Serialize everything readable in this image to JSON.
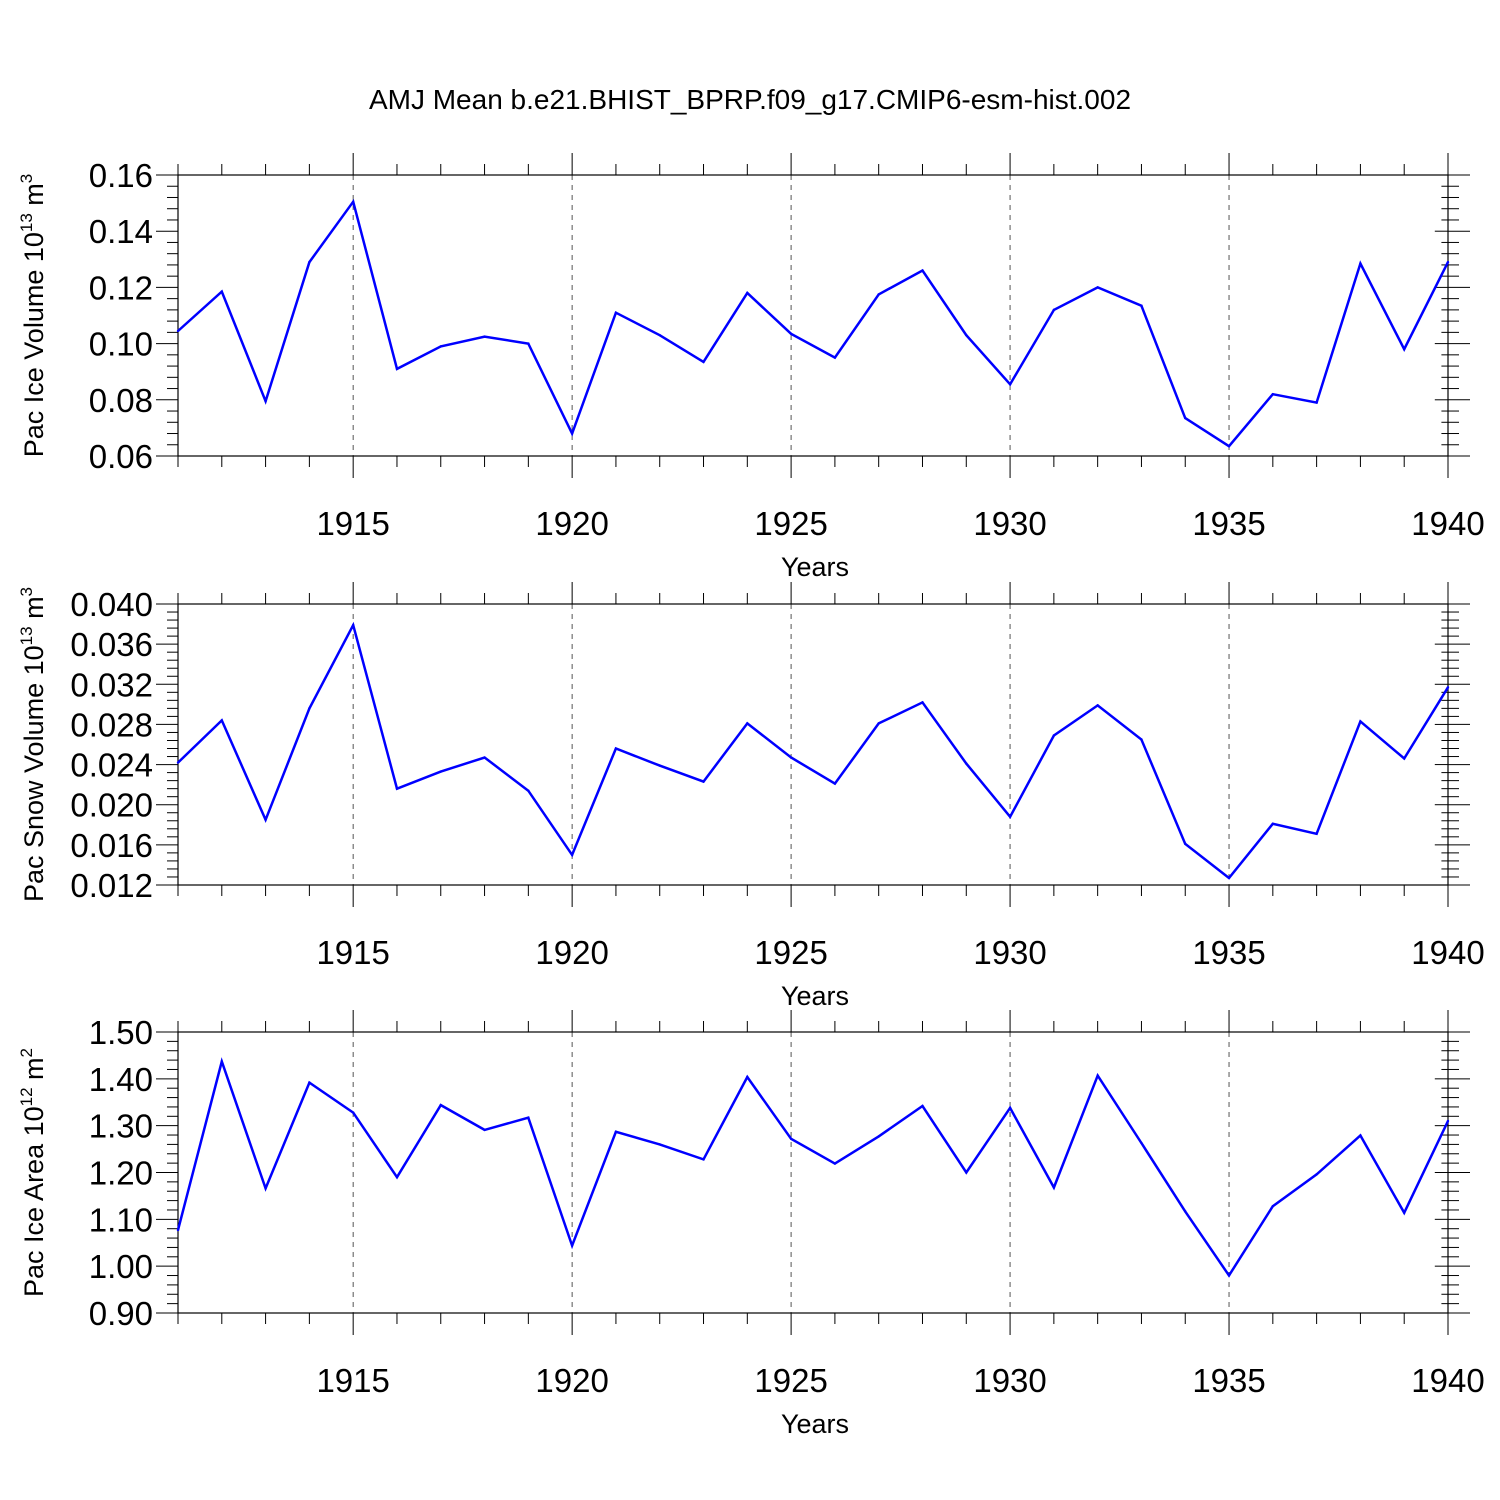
{
  "title": "AMJ Mean b.e21.BHIST_BPRP.f09_g17.CMIP6-esm-hist.002",
  "colors": {
    "line": "#0000ff",
    "axis": "#000000",
    "grid": "#555555"
  },
  "chart_data": [
    {
      "type": "line",
      "ylabel": "Pac Ice Volume 10",
      "ylabel_exp": "13",
      "ylabel_unit": " m",
      "ylabel_unit_exp": "3",
      "xlabel": "Years",
      "xlim": [
        1911,
        1940
      ],
      "ylim": [
        0.06,
        0.16
      ],
      "yticks": [
        0.06,
        0.08,
        0.1,
        0.12,
        0.14,
        0.16
      ],
      "ytick_labels": [
        "0.06",
        "0.08",
        "0.10",
        "0.12",
        "0.14",
        "0.16"
      ],
      "xticks": [
        1915,
        1920,
        1925,
        1930,
        1935,
        1940
      ],
      "xtick_labels": [
        "1915",
        "1920",
        "1925",
        "1930",
        "1935",
        "1940"
      ],
      "grid": "vertical dashed at major x ticks",
      "x": [
        1911,
        1912,
        1913,
        1914,
        1915,
        1916,
        1917,
        1918,
        1919,
        1920,
        1921,
        1922,
        1923,
        1924,
        1925,
        1926,
        1927,
        1928,
        1929,
        1930,
        1931,
        1932,
        1933,
        1934,
        1935,
        1936,
        1937,
        1938,
        1939,
        1940
      ],
      "values": [
        0.1045,
        0.1185,
        0.0795,
        0.129,
        0.1505,
        0.091,
        0.099,
        0.1025,
        0.1,
        0.068,
        0.111,
        0.103,
        0.0935,
        0.118,
        0.1035,
        0.095,
        0.1175,
        0.126,
        0.103,
        0.0855,
        0.112,
        0.12,
        0.1135,
        0.0735,
        0.0635,
        0.082,
        0.079,
        0.1285,
        0.098,
        0.129
      ]
    },
    {
      "type": "line",
      "ylabel": "Pac Snow Volume 10",
      "ylabel_exp": "13",
      "ylabel_unit": " m",
      "ylabel_unit_exp": "3",
      "xlabel": "Years",
      "xlim": [
        1911,
        1940
      ],
      "ylim": [
        0.012,
        0.04
      ],
      "yticks": [
        0.012,
        0.016,
        0.02,
        0.024,
        0.028,
        0.032,
        0.036,
        0.04
      ],
      "ytick_labels": [
        "0.012",
        "0.016",
        "0.020",
        "0.024",
        "0.028",
        "0.032",
        "0.036",
        "0.040"
      ],
      "xticks": [
        1915,
        1920,
        1925,
        1930,
        1935,
        1940
      ],
      "xtick_labels": [
        "1915",
        "1920",
        "1925",
        "1930",
        "1935",
        "1940"
      ],
      "grid": "vertical dashed at major x ticks",
      "x": [
        1911,
        1912,
        1913,
        1914,
        1915,
        1916,
        1917,
        1918,
        1919,
        1920,
        1921,
        1922,
        1923,
        1924,
        1925,
        1926,
        1927,
        1928,
        1929,
        1930,
        1931,
        1932,
        1933,
        1934,
        1935,
        1936,
        1937,
        1938,
        1939,
        1940
      ],
      "values": [
        0.0242,
        0.0284,
        0.0185,
        0.0296,
        0.0379,
        0.0216,
        0.0233,
        0.0247,
        0.0214,
        0.015,
        0.0256,
        0.0239,
        0.0223,
        0.0281,
        0.0247,
        0.0221,
        0.0281,
        0.0302,
        0.0241,
        0.0188,
        0.0269,
        0.0299,
        0.0265,
        0.0161,
        0.0127,
        0.0181,
        0.0171,
        0.0283,
        0.0246,
        0.0317
      ]
    },
    {
      "type": "line",
      "ylabel": "Pac Ice Area 10",
      "ylabel_exp": "12",
      "ylabel_unit": " m",
      "ylabel_unit_exp": "2",
      "xlabel": "Years",
      "xlim": [
        1911,
        1940
      ],
      "ylim": [
        0.9,
        1.5
      ],
      "yticks": [
        0.9,
        1.0,
        1.1,
        1.2,
        1.3,
        1.4,
        1.5
      ],
      "ytick_labels": [
        "0.90",
        "1.00",
        "1.10",
        "1.20",
        "1.30",
        "1.40",
        "1.50"
      ],
      "xticks": [
        1915,
        1920,
        1925,
        1930,
        1935,
        1940
      ],
      "xtick_labels": [
        "1915",
        "1920",
        "1925",
        "1930",
        "1935",
        "1940"
      ],
      "grid": "vertical dashed at major x ticks",
      "x": [
        1911,
        1912,
        1913,
        1914,
        1915,
        1916,
        1917,
        1918,
        1919,
        1920,
        1921,
        1922,
        1923,
        1924,
        1925,
        1926,
        1927,
        1928,
        1929,
        1930,
        1931,
        1932,
        1933,
        1934,
        1935,
        1936,
        1937,
        1938,
        1939,
        1940
      ],
      "values": [
        1.077,
        1.437,
        1.166,
        1.392,
        1.328,
        1.19,
        1.344,
        1.291,
        1.317,
        1.044,
        1.287,
        1.26,
        1.228,
        1.404,
        1.272,
        1.219,
        1.277,
        1.342,
        1.2,
        1.338,
        1.168,
        1.407,
        1.263,
        1.117,
        0.98,
        1.128,
        1.196,
        1.279,
        1.114,
        1.31
      ]
    }
  ]
}
